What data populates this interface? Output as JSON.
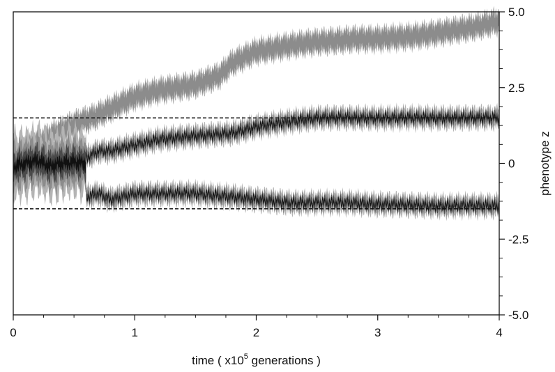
{
  "chart_data": {
    "type": "area",
    "xlabel_prefix": "time ( x10",
    "xlabel_sup": "5",
    "xlabel_suffix": " generations )",
    "ylabel": "phenotype z",
    "xlim": [
      0,
      4
    ],
    "ylim": [
      -5.0,
      5.0
    ],
    "x_ticks": [
      "0",
      "1",
      "2",
      "3",
      "4"
    ],
    "y_ticks": [
      "5.0",
      "2.5",
      "0",
      "-2.5",
      "-5.0"
    ],
    "y_axis_side": "right",
    "reference_lines": [
      1.5,
      -1.5
    ],
    "colors": {
      "outer": "#b4b4b4",
      "mid": "#8c8c8c",
      "inner": "#4a4a4a",
      "core": "#111111"
    },
    "series": [
      {
        "t": [
          0,
          0.3,
          0.5,
          0.65,
          0.8,
          1.0,
          1.2,
          1.5,
          1.7,
          1.8,
          2.0,
          2.3,
          2.5,
          2.8,
          3.0,
          3.3,
          3.5,
          3.8,
          4.0
        ],
        "z": [
          0.2,
          0.9,
          1.3,
          1.5,
          1.8,
          2.2,
          2.4,
          2.6,
          2.9,
          3.3,
          3.7,
          3.9,
          4.0,
          4.1,
          4.1,
          4.2,
          4.3,
          4.5,
          4.7
        ]
      },
      {
        "t": [
          0.6,
          0.7,
          0.8,
          1.0,
          1.2,
          1.5,
          1.8,
          2.0,
          2.3,
          2.5,
          2.8,
          3.0,
          3.5,
          4.0
        ],
        "z": [
          0.2,
          0.4,
          0.4,
          0.6,
          0.8,
          0.9,
          1.0,
          1.2,
          1.4,
          1.5,
          1.5,
          1.5,
          1.5,
          1.5
        ]
      },
      {
        "t": [
          0.6,
          0.7,
          0.8,
          1.0,
          1.2,
          1.5,
          1.8,
          2.0,
          2.3,
          2.5,
          2.8,
          3.0,
          3.5,
          4.0
        ],
        "z": [
          -1.1,
          -1.0,
          -1.2,
          -1.0,
          -1.0,
          -1.0,
          -1.1,
          -1.2,
          -1.3,
          -1.3,
          -1.3,
          -1.35,
          -1.4,
          -1.4
        ]
      },
      {
        "t": [
          0,
          0.1,
          0.2,
          0.3,
          0.4,
          0.5,
          0.6
        ],
        "z": [
          -0.1,
          0.0,
          0.1,
          -0.1,
          0.0,
          0.05,
          0.0
        ]
      }
    ]
  }
}
